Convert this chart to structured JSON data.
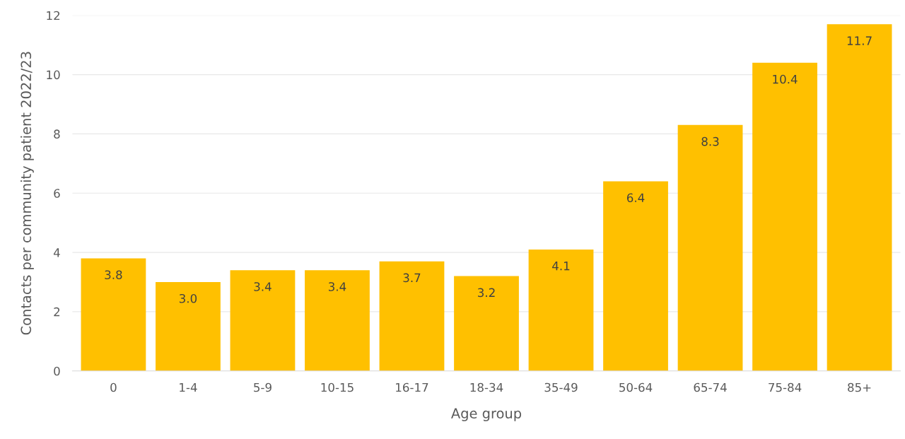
{
  "chart_data": {
    "type": "bar",
    "xlabel": "Age group",
    "ylabel": "Contacts per community patient 2022/23",
    "categories": [
      "0",
      "1-4",
      "5-9",
      "10-15",
      "16-17",
      "18-34",
      "35-49",
      "50-64",
      "65-74",
      "75-84",
      "85+"
    ],
    "values": [
      3.8,
      3.0,
      3.4,
      3.4,
      3.7,
      3.2,
      4.1,
      6.4,
      8.3,
      10.4,
      11.7
    ],
    "value_labels": [
      "3.8",
      "3.0",
      "3.4",
      "3.4",
      "3.7",
      "3.2",
      "4.1",
      "6.4",
      "8.3",
      "10.4",
      "11.7"
    ],
    "color": "#ffc000",
    "ylim": [
      0,
      12
    ],
    "yticks": [
      0,
      2,
      4,
      6,
      8,
      10,
      12
    ],
    "grid": "y",
    "legend": false
  }
}
